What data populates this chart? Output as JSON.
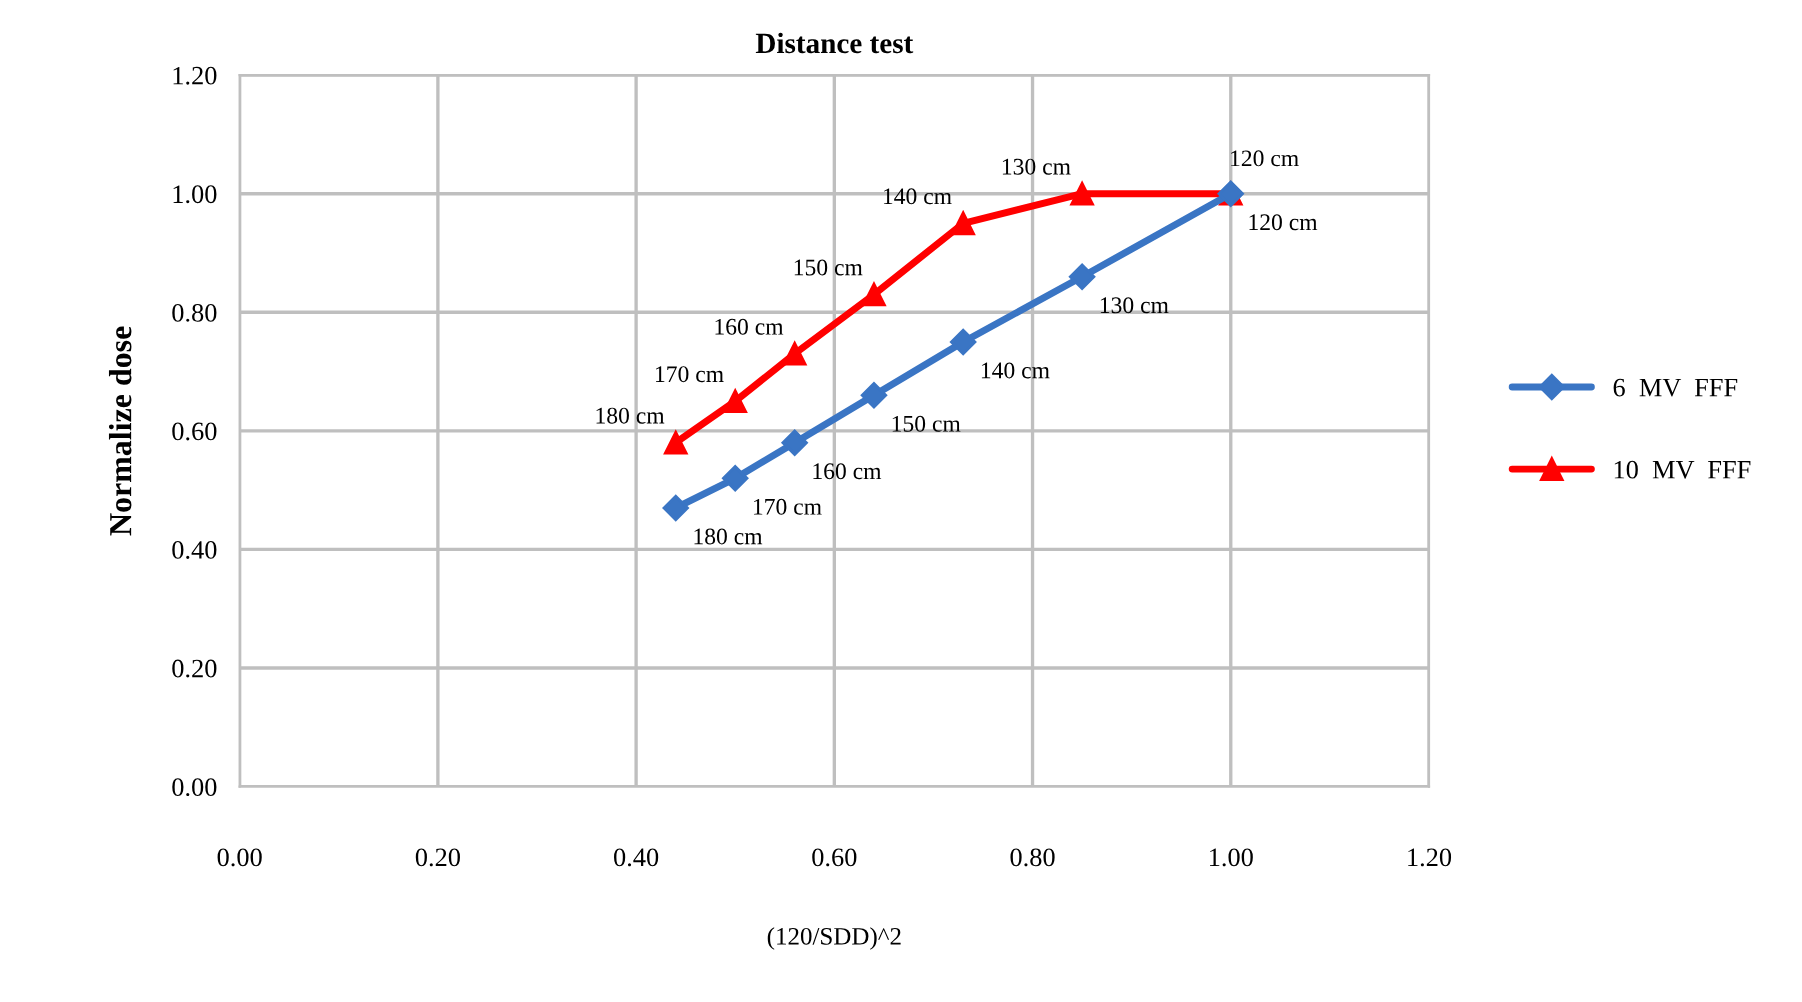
{
  "chart_data": {
    "type": "line",
    "title": "Distance test",
    "xlabel": "(120/SDD)^2",
    "ylabel": "Normalize dose",
    "x": [
      0.44,
      0.5,
      0.56,
      0.64,
      0.73,
      0.85,
      1.0
    ],
    "series": [
      {
        "name": "6  MV  FFF",
        "color": "#3a75c4",
        "marker": "diamond",
        "values": [
          0.47,
          0.52,
          0.58,
          0.66,
          0.75,
          0.86,
          1.0
        ]
      },
      {
        "name": "10  MV  FFF",
        "color": "#ff0000",
        "marker": "triangle",
        "values": [
          0.58,
          0.65,
          0.73,
          0.83,
          0.95,
          1.0,
          1.0
        ]
      }
    ],
    "xlim": [
      0,
      1.2
    ],
    "ylim": [
      0,
      1.2
    ],
    "xticks": [
      {
        "value": 0,
        "label": "0.00"
      },
      {
        "value": 0.2,
        "label": "0.20"
      },
      {
        "value": 0.4,
        "label": "0.40"
      },
      {
        "value": 0.6,
        "label": "0.60"
      },
      {
        "value": 0.8,
        "label": "0.80"
      },
      {
        "value": 1.0,
        "label": "1.00"
      },
      {
        "value": 1.2,
        "label": "1.20"
      }
    ],
    "yticks": [
      {
        "value": 0,
        "label": "0.00"
      },
      {
        "value": 0.2,
        "label": "0.20"
      },
      {
        "value": 0.4,
        "label": "0.40"
      },
      {
        "value": 0.6,
        "label": "0.60"
      },
      {
        "value": 0.8,
        "label": "0.80"
      },
      {
        "value": 1.0,
        "label": "1.00"
      },
      {
        "value": 1.2,
        "label": "1.20"
      }
    ],
    "grid": true,
    "legend": "right",
    "line_style": "solid",
    "annotations": [
      {
        "text": "180 cm",
        "x": 0.44,
        "y": 0.47
      },
      {
        "text": "170 cm",
        "x": 0.5,
        "y": 0.52
      },
      {
        "text": "160 cm",
        "x": 0.56,
        "y": 0.58
      },
      {
        "text": "150 cm",
        "x": 0.64,
        "y": 0.66
      },
      {
        "text": "140 cm",
        "x": 0.73,
        "y": 0.75
      },
      {
        "text": "130 cm",
        "x": 0.85,
        "y": 0.86
      },
      {
        "text": "120 cm",
        "x": 1.0,
        "y": 1.0
      },
      {
        "text": "180 cm",
        "x": 0.44,
        "y": 0.58
      },
      {
        "text": "170 cm",
        "x": 0.5,
        "y": 0.65
      },
      {
        "text": "160 cm",
        "x": 0.56,
        "y": 0.73
      },
      {
        "text": "150 cm",
        "x": 0.64,
        "y": 0.83
      },
      {
        "text": "140 cm",
        "x": 0.73,
        "y": 0.95
      },
      {
        "text": "130 cm",
        "x": 0.85,
        "y": 1.0
      },
      {
        "text": "120 cm",
        "x": 1.0,
        "y": 1.0
      }
    ]
  }
}
